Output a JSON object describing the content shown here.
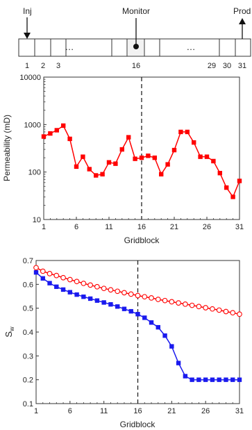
{
  "colors": {
    "red": "#ff0000",
    "blue": "#1a1aee",
    "grey_fill": "#f2f2f2"
  },
  "schematic": {
    "inj_label": "Inj",
    "monitor_label": "Monitor",
    "prod_label": "Prod",
    "ellipsis": "…",
    "block_labels": [
      {
        "block": 1,
        "text": "1"
      },
      {
        "block": 2,
        "text": "2"
      },
      {
        "block": 3,
        "text": "3"
      },
      {
        "block": 16,
        "text": "16"
      },
      {
        "block": 29,
        "text": "29"
      },
      {
        "block": 30,
        "text": "30"
      },
      {
        "block": 31,
        "text": "31"
      }
    ]
  },
  "chart_data": [
    {
      "type": "line",
      "xlabel": "Gridblock",
      "ylabel": "Permeability (mD)",
      "yscale": "log",
      "xlim": [
        1,
        31
      ],
      "ylim": [
        10,
        10000
      ],
      "xticks": [
        1,
        6,
        11,
        16,
        21,
        26,
        31
      ],
      "yticks": [
        {
          "value": 10,
          "label": "10"
        },
        {
          "value": 100,
          "label": "100"
        },
        {
          "value": 1000,
          "label": "1000"
        },
        {
          "value": 10000,
          "label": "10000"
        }
      ],
      "vline_x": 16,
      "series": [
        {
          "marker": "square",
          "color": "#ff0000",
          "x": [
            1,
            2,
            3,
            4,
            5,
            6,
            7,
            8,
            9,
            10,
            11,
            12,
            13,
            14,
            15,
            16,
            17,
            18,
            19,
            20,
            21,
            22,
            23,
            24,
            25,
            26,
            27,
            28,
            29,
            30,
            31
          ],
          "values": [
            560,
            650,
            760,
            950,
            500,
            130,
            210,
            115,
            85,
            90,
            160,
            150,
            300,
            540,
            190,
            200,
            220,
            200,
            90,
            145,
            290,
            700,
            700,
            420,
            210,
            210,
            170,
            95,
            47,
            30,
            65
          ]
        }
      ]
    },
    {
      "type": "line",
      "xlabel": "Gridblock",
      "ylabel": "S",
      "ylabel_sub": "w",
      "xlim": [
        1,
        31
      ],
      "ylim": [
        0.1,
        0.7
      ],
      "xticks": [
        1,
        6,
        11,
        16,
        21,
        26,
        31
      ],
      "yticks": [
        {
          "value": 0.1,
          "label": "0.1"
        },
        {
          "value": 0.2,
          "label": "0.2"
        },
        {
          "value": 0.3,
          "label": "0.3"
        },
        {
          "value": 0.4,
          "label": "0.4"
        },
        {
          "value": 0.5,
          "label": "0.5"
        },
        {
          "value": 0.6,
          "label": "0.6"
        },
        {
          "value": 0.7,
          "label": "0.7"
        }
      ],
      "vline_x": 16,
      "series": [
        {
          "marker": "open-circle",
          "color": "#ff0000",
          "x": [
            1,
            2,
            3,
            4,
            5,
            6,
            7,
            8,
            9,
            10,
            11,
            12,
            13,
            14,
            15,
            16,
            17,
            18,
            19,
            20,
            21,
            22,
            23,
            24,
            25,
            26,
            27,
            28,
            29,
            30,
            31
          ],
          "values": [
            0.67,
            0.655,
            0.645,
            0.637,
            0.628,
            0.62,
            0.612,
            0.604,
            0.597,
            0.59,
            0.583,
            0.577,
            0.571,
            0.565,
            0.559,
            0.553,
            0.548,
            0.543,
            0.537,
            0.532,
            0.527,
            0.522,
            0.517,
            0.512,
            0.507,
            0.502,
            0.497,
            0.492,
            0.486,
            0.481,
            0.475
          ]
        },
        {
          "marker": "square",
          "color": "#1a1aee",
          "x": [
            1,
            2,
            3,
            4,
            5,
            6,
            7,
            8,
            9,
            10,
            11,
            12,
            13,
            14,
            15,
            16,
            17,
            18,
            19,
            20,
            21,
            22,
            23,
            24,
            25,
            26,
            27,
            28,
            29,
            30,
            31
          ],
          "values": [
            0.65,
            0.625,
            0.605,
            0.59,
            0.578,
            0.567,
            0.557,
            0.548,
            0.54,
            0.532,
            0.524,
            0.516,
            0.507,
            0.497,
            0.487,
            0.475,
            0.46,
            0.44,
            0.42,
            0.385,
            0.34,
            0.27,
            0.215,
            0.2,
            0.2,
            0.2,
            0.2,
            0.2,
            0.2,
            0.2,
            0.2
          ]
        }
      ]
    }
  ]
}
